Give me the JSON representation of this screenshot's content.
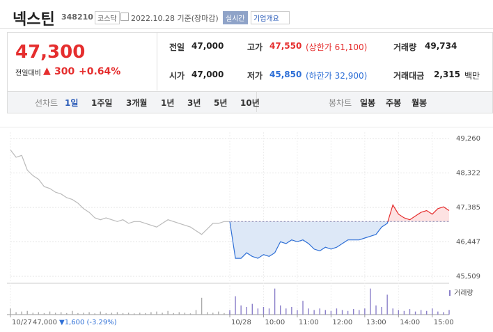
{
  "header": {
    "title": "넥스틴",
    "code": "348210",
    "market": "코스닥",
    "date": "2022.10.28 기준(장마감)",
    "realtime": "실시간",
    "overview": "기업개요"
  },
  "quote": {
    "price": "47,300",
    "change_label": "전일대비",
    "change_arrow": "▲",
    "change": "300",
    "change_pct": "+0.64%",
    "items": [
      {
        "label": "전일",
        "value": "47,000"
      },
      {
        "label": "고가",
        "value": "47,550",
        "note": "(상한가 61,100)"
      },
      {
        "label": "거래량",
        "value": "49,734"
      },
      {
        "label": "시가",
        "value": "47,000"
      },
      {
        "label": "저가",
        "value": "45,850",
        "note": "(하한가 32,900)"
      },
      {
        "label": "거래대금",
        "value": "2,315",
        "unit": "백만"
      }
    ]
  },
  "tabs": {
    "line_label": "선차트",
    "line_tabs": [
      "1일",
      "1주일",
      "3개월",
      "1년",
      "3년",
      "5년",
      "10년"
    ],
    "candle_label": "봉차트",
    "candle_tabs": [
      "일봉",
      "주봉",
      "월봉"
    ]
  },
  "chart_data": {
    "type": "line",
    "ylim": [
      45509,
      49260
    ],
    "xlim": [
      -390,
      390
    ],
    "yticks": [
      {
        "value": 49260,
        "label": "49,260"
      },
      {
        "value": 48322,
        "label": "48,322"
      },
      {
        "value": 47385,
        "label": "47,385"
      },
      {
        "value": 46447,
        "label": "46,447"
      },
      {
        "value": 45509,
        "label": "45,509"
      }
    ],
    "xticks": [
      {
        "value": -390,
        "label": "10/27"
      },
      {
        "value": 0,
        "label": "10/28"
      },
      {
        "value": 60,
        "label": "10:00"
      },
      {
        "value": 120,
        "label": "11:00"
      },
      {
        "value": 180,
        "label": "12:00"
      },
      {
        "value": 240,
        "label": "13:00"
      },
      {
        "value": 300,
        "label": "14:00"
      },
      {
        "value": 360,
        "label": "15:00"
      }
    ],
    "grid": true,
    "baseline": 47000,
    "up_color": "#e52e2e",
    "down_color": "#2e6fd6",
    "prev_close_text": "47,000",
    "prev_change": "▼1,600 (-3.29%)",
    "volume_label": "거래량",
    "volume_lim": [
      0,
      100
    ],
    "series": [
      {
        "color": "#bbbbbb",
        "volume_color": "#aaaaaa",
        "x": [
          -390,
          -380,
          -370,
          -360,
          -350,
          -340,
          -330,
          -320,
          -310,
          -300,
          -290,
          -280,
          -270,
          -260,
          -250,
          -240,
          -230,
          -220,
          -210,
          -200,
          -190,
          -180,
          -170,
          -160,
          -150,
          -140,
          -130,
          -120,
          -110,
          -100,
          -90,
          -80,
          -70,
          -60,
          -50,
          -40,
          -30,
          -20,
          -10,
          0
        ],
        "values": [
          48950,
          48750,
          48800,
          48400,
          48250,
          48150,
          47950,
          47900,
          47800,
          47750,
          47650,
          47600,
          47500,
          47350,
          47250,
          47100,
          47050,
          47100,
          47050,
          47000,
          47050,
          46950,
          47000,
          47000,
          46950,
          46900,
          46850,
          46950,
          47050,
          47000,
          46950,
          46900,
          46850,
          46750,
          46650,
          46800,
          46950,
          46950,
          47000,
          47000
        ],
        "volume": [
          20,
          8,
          10,
          12,
          6,
          8,
          5,
          10,
          6,
          8,
          5,
          12,
          5,
          6,
          8,
          4,
          10,
          5,
          6,
          8,
          5,
          6,
          4,
          6,
          5,
          8,
          10,
          6,
          12,
          5,
          8,
          6,
          4,
          15,
          55,
          8,
          6,
          10,
          5,
          8
        ]
      },
      {
        "color": "#2e6fd6",
        "volume_color": "#8a7fc9",
        "gradient": true,
        "x": [
          0,
          10,
          20,
          30,
          40,
          50,
          60,
          70,
          80,
          90,
          100,
          110,
          120,
          130,
          140,
          150,
          160,
          170,
          180,
          190,
          200,
          210,
          220,
          230,
          240,
          250,
          260,
          270,
          280,
          290,
          300,
          310,
          320,
          330,
          340,
          350,
          360,
          370,
          380,
          390
        ],
        "values": [
          47000,
          46000,
          46000,
          46150,
          46050,
          46000,
          46100,
          46050,
          46150,
          46450,
          46400,
          46500,
          46450,
          46500,
          46400,
          46250,
          46200,
          46300,
          46250,
          46300,
          46400,
          46500,
          46500,
          46500,
          46550,
          46600,
          46650,
          46850,
          46950,
          47450,
          47200,
          47100,
          47050,
          47150,
          47250,
          47300,
          47200,
          47350,
          47400,
          47300
        ],
        "volume": [
          15,
          60,
          30,
          25,
          35,
          20,
          25,
          20,
          85,
          30,
          20,
          25,
          15,
          45,
          20,
          15,
          20,
          15,
          12,
          20,
          15,
          12,
          18,
          15,
          20,
          85,
          30,
          25,
          65,
          20,
          15,
          12,
          18,
          10,
          15,
          12,
          20,
          10,
          8,
          15
        ]
      }
    ]
  }
}
